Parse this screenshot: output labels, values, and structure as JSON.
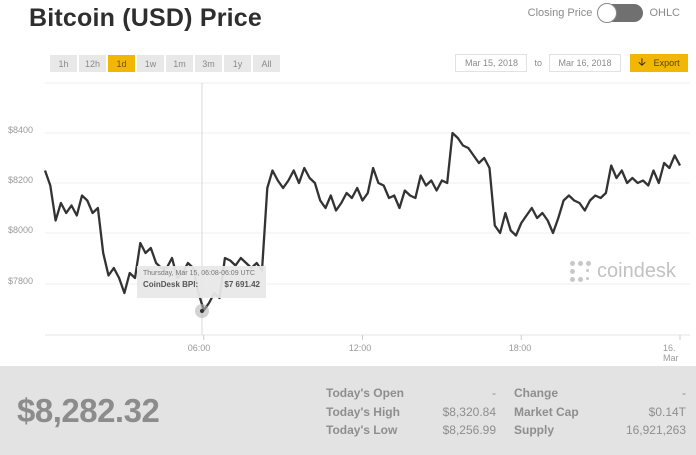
{
  "header": {
    "title": "Bitcoin (USD) Price",
    "toggle_left_label": "Closing Price",
    "toggle_right_label": "OHLC"
  },
  "ranges": [
    {
      "label": "1h",
      "active": false
    },
    {
      "label": "12h",
      "active": false
    },
    {
      "label": "1d",
      "active": true
    },
    {
      "label": "1w",
      "active": false
    },
    {
      "label": "1m",
      "active": false
    },
    {
      "label": "3m",
      "active": false
    },
    {
      "label": "1y",
      "active": false
    },
    {
      "label": "All",
      "active": false
    }
  ],
  "date_range": {
    "from": "Mar 15, 2018",
    "separator": "to",
    "to": "Mar 16, 2018",
    "export_label": "Export"
  },
  "tooltip": {
    "time": "Thursday, Mar 15, 06:08-06:09 UTC",
    "series_label": "CoinDesk BPI:",
    "value": "$7 691.42"
  },
  "watermark": "coindesk",
  "footer": {
    "current_price": "$8,282.32",
    "stats_left": [
      {
        "label": "Today's Open",
        "value": "-"
      },
      {
        "label": "Today's High",
        "value": "$8,320.84"
      },
      {
        "label": "Today's Low",
        "value": "$8,256.99"
      }
    ],
    "stats_right": [
      {
        "label": "Change",
        "value": "-"
      },
      {
        "label": "Market Cap",
        "value": "$0.14T"
      },
      {
        "label": "Supply",
        "value": "16,921,263"
      }
    ]
  },
  "colors": {
    "accent": "#f2b705",
    "line": "#333333",
    "grid": "#eeeeee",
    "footer_bg": "#e3e3e3"
  },
  "chart_data": {
    "type": "line",
    "title": "Bitcoin (USD) Price",
    "series_name": "CoinDesk BPI",
    "xlabel": "",
    "ylabel": "",
    "x_ticks": [
      "06:00",
      "12:00",
      "18:00",
      "16. Mar"
    ],
    "y_ticks": [
      "$7800",
      "$8000",
      "$8200",
      "$8400"
    ],
    "ylim": [
      7600,
      8600
    ],
    "grid": true,
    "legend": "none",
    "hover": {
      "x": "06:08",
      "value": 7691.42
    },
    "x_hours": [
      0,
      0.2,
      0.4,
      0.6,
      0.8,
      1.0,
      1.2,
      1.4,
      1.6,
      1.8,
      2.0,
      2.2,
      2.4,
      2.6,
      2.8,
      3.0,
      3.2,
      3.4,
      3.6,
      3.8,
      4.0,
      4.2,
      4.4,
      4.6,
      4.8,
      5.0,
      5.2,
      5.4,
      5.6,
      5.8,
      6.0,
      6.2,
      6.4,
      6.6,
      6.8,
      7.0,
      7.2,
      7.4,
      7.6,
      7.8,
      8.0,
      8.2,
      8.4,
      8.6,
      8.8,
      9.0,
      9.2,
      9.4,
      9.6,
      9.8,
      10.0,
      10.2,
      10.4,
      10.6,
      10.8,
      11.0,
      11.2,
      11.4,
      11.6,
      11.8,
      12.0,
      12.2,
      12.4,
      12.6,
      12.8,
      13.0,
      13.2,
      13.4,
      13.6,
      13.8,
      14.0,
      14.2,
      14.4,
      14.6,
      14.8,
      15.0,
      15.2,
      15.4,
      15.6,
      15.8,
      16.0,
      16.2,
      16.4,
      16.6,
      16.8,
      17.0,
      17.2,
      17.4,
      17.6,
      17.8,
      18.0,
      18.2,
      18.4,
      18.6,
      18.8,
      19.0,
      19.2,
      19.4,
      19.6,
      19.8,
      20.0,
      20.2,
      20.4,
      20.6,
      20.8,
      21.0,
      21.2,
      21.4,
      21.6,
      21.8,
      22.0,
      22.2,
      22.4,
      22.6,
      22.8,
      23.0,
      23.2,
      23.4,
      23.6,
      23.8,
      24.0
    ],
    "values": [
      8250,
      8190,
      8050,
      8120,
      8080,
      8110,
      8070,
      8150,
      8130,
      8080,
      8100,
      7920,
      7830,
      7860,
      7820,
      7760,
      7840,
      7820,
      7960,
      7920,
      7940,
      7880,
      7860,
      7860,
      7900,
      7820,
      7840,
      7880,
      7860,
      7760,
      7691,
      7720,
      7760,
      7740,
      7900,
      7890,
      7870,
      7900,
      7880,
      7860,
      7880,
      7850,
      8180,
      8250,
      8210,
      8180,
      8210,
      8250,
      8200,
      8260,
      8220,
      8200,
      8130,
      8100,
      8150,
      8090,
      8120,
      8160,
      8140,
      8180,
      8130,
      8160,
      8260,
      8200,
      8190,
      8140,
      8150,
      8100,
      8170,
      8150,
      8140,
      8230,
      8190,
      8210,
      8170,
      8210,
      8200,
      8400,
      8380,
      8350,
      8340,
      8310,
      8280,
      8300,
      8260,
      8030,
      8000,
      8080,
      8010,
      7990,
      8040,
      8070,
      8100,
      8060,
      8080,
      8050,
      8000,
      8060,
      8130,
      8150,
      8130,
      8120,
      8090,
      8130,
      8150,
      8140,
      8160,
      8270,
      8220,
      8250,
      8200,
      8220,
      8200,
      8210,
      8190,
      8250,
      8200,
      8280,
      8260,
      8310,
      8270
    ]
  }
}
